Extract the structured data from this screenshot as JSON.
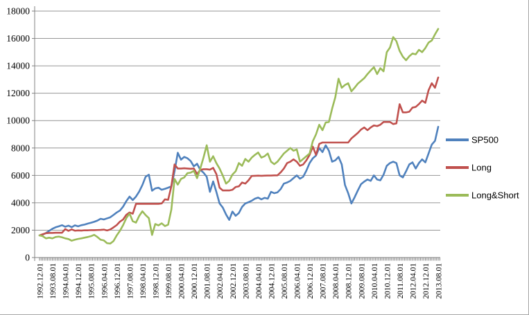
{
  "colors": {
    "background": "#ffffff",
    "gridline": "#969696",
    "axis": "#808080",
    "text": "#000000",
    "frame_border": "#a6a6a6"
  },
  "legend": {
    "position": "right"
  },
  "chart_data": {
    "type": "line",
    "title": "",
    "xlabel": "",
    "ylabel": "",
    "grid": true,
    "legend_position": "right",
    "y_axis": {
      "min": 0,
      "max": 18000,
      "step": 2000
    },
    "x_tick_labels": [
      "1992.12.01",
      "1993.08.01",
      "1994.04.01",
      "1994.12.01",
      "1995.08.01",
      "1996.04.01",
      "1996.12.01",
      "1997.08.01",
      "1998.04.01",
      "1998.12.01",
      "1999.08.01",
      "2000.04.01",
      "2000.12.01",
      "2001.08.01",
      "2002.04.01",
      "2002.12.01",
      "2003.08.01",
      "2004.04.01",
      "2004.12.01",
      "2005.08.01",
      "2006.04.01",
      "2006.12.01",
      "2007.08.01",
      "2008.04.01",
      "2008.12.01",
      "2009.08.01",
      "2010.04.01",
      "2010.12.01",
      "2011.08.01",
      "2012.04.01",
      "2012.12.01",
      "2013.08.01"
    ],
    "x_note": "monthly data Dec 1992 - Aug 2013; series values sampled every 2 months; axis labels every 8 months",
    "points_per_tick": 4,
    "minor_ticks_per_tick": 8,
    "series": [
      {
        "name": "SP500",
        "color": "#4F81BD",
        "values": [
          1620,
          1680,
          1790,
          1950,
          2100,
          2210,
          2280,
          2360,
          2250,
          2330,
          2220,
          2350,
          2280,
          2360,
          2410,
          2480,
          2540,
          2610,
          2700,
          2830,
          2780,
          2860,
          2940,
          3110,
          3290,
          3430,
          3720,
          4120,
          4450,
          4200,
          4450,
          4820,
          5300,
          5900,
          6050,
          4880,
          5050,
          5100,
          4950,
          5020,
          5100,
          5200,
          6300,
          7650,
          7150,
          7350,
          7250,
          7050,
          6660,
          6850,
          6400,
          6200,
          5900,
          4800,
          5560,
          4800,
          3950,
          3650,
          3150,
          2750,
          3360,
          3050,
          3250,
          3700,
          3950,
          4040,
          4150,
          4300,
          4380,
          4250,
          4360,
          4300,
          4800,
          4700,
          4760,
          5000,
          5400,
          5480,
          5600,
          5800,
          6000,
          5760,
          5900,
          6350,
          6900,
          7250,
          7450,
          8000,
          7700,
          8200,
          7800,
          7000,
          7100,
          7350,
          6800,
          5300,
          4700,
          3950,
          4400,
          4900,
          5360,
          5550,
          5700,
          5600,
          6000,
          5700,
          5640,
          6050,
          6700,
          6900,
          7000,
          6900,
          6000,
          5850,
          6300,
          6800,
          6950,
          6500,
          6900,
          7170,
          6950,
          7600,
          8250,
          8520,
          9550
        ]
      },
      {
        "name": "Long",
        "color": "#C0504D",
        "values": [
          1620,
          1700,
          1780,
          1800,
          1800,
          1810,
          1810,
          1810,
          2080,
          1950,
          2060,
          1960,
          1980,
          1970,
          1990,
          1990,
          2000,
          2000,
          2010,
          2020,
          2040,
          1980,
          2050,
          2200,
          2370,
          2620,
          2780,
          3120,
          3290,
          3200,
          3920,
          3920,
          3920,
          3920,
          3920,
          3920,
          3920,
          3920,
          3950,
          4250,
          4220,
          5200,
          6800,
          6500,
          6500,
          6520,
          6500,
          6480,
          6500,
          6100,
          6400,
          6450,
          6450,
          6420,
          6550,
          6100,
          5100,
          4900,
          4900,
          4900,
          4950,
          5150,
          5200,
          5480,
          5400,
          5640,
          5960,
          5970,
          5980,
          5970,
          5980,
          5990,
          5990,
          6000,
          6000,
          6220,
          6500,
          6900,
          7000,
          7170,
          7000,
          6700,
          6800,
          7100,
          7500,
          8100,
          7500,
          8300,
          8400,
          8400,
          8400,
          8400,
          8400,
          8400,
          8400,
          8400,
          8400,
          8700,
          8900,
          9100,
          9350,
          9500,
          9300,
          9500,
          9650,
          9600,
          9700,
          9900,
          9900,
          9900,
          9750,
          9800,
          11200,
          10600,
          10600,
          10650,
          10950,
          11000,
          11210,
          11460,
          11300,
          12220,
          12730,
          12400,
          13150
        ]
      },
      {
        "name": "Long&Short",
        "color": "#9BBB59",
        "values": [
          1620,
          1560,
          1400,
          1450,
          1400,
          1500,
          1530,
          1480,
          1400,
          1350,
          1230,
          1300,
          1360,
          1400,
          1450,
          1500,
          1560,
          1660,
          1500,
          1300,
          1250,
          1050,
          1020,
          1200,
          1610,
          1950,
          2370,
          2880,
          3210,
          2650,
          2550,
          3040,
          3380,
          3100,
          2880,
          1650,
          2450,
          2350,
          2500,
          2300,
          2400,
          3500,
          5740,
          5320,
          5740,
          5850,
          6160,
          6200,
          6330,
          5800,
          6500,
          7300,
          8200,
          7000,
          7400,
          6900,
          6500,
          5990,
          5400,
          5600,
          6060,
          6300,
          6900,
          6700,
          7200,
          7000,
          7300,
          7500,
          7670,
          7300,
          7400,
          7600,
          7000,
          6820,
          7000,
          7300,
          7600,
          7800,
          8000,
          7800,
          7900,
          7000,
          7200,
          7400,
          7600,
          8500,
          9000,
          9700,
          9300,
          9860,
          9900,
          10870,
          11710,
          13060,
          12400,
          12600,
          12730,
          12140,
          12400,
          12700,
          12900,
          13100,
          13400,
          13660,
          13900,
          13400,
          13830,
          13600,
          15000,
          15340,
          16100,
          15800,
          15090,
          14670,
          14410,
          14700,
          14900,
          14840,
          15170,
          15000,
          15300,
          15700,
          15850,
          16300,
          16700
        ]
      }
    ]
  }
}
